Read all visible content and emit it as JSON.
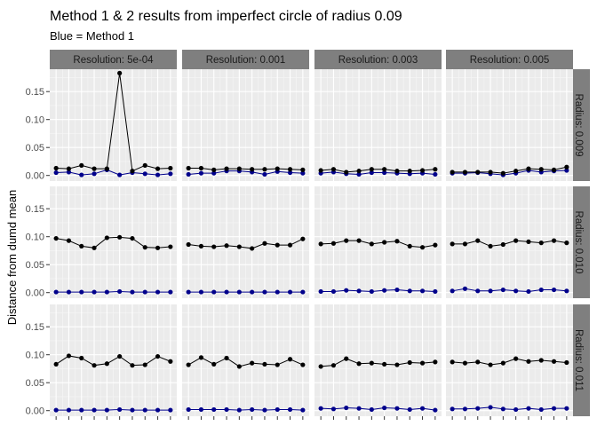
{
  "chart_data": {
    "type": "line",
    "title": "Method 1 & 2 results from imperfect circle of radius 0.09",
    "subtitle": "Blue = Method 1",
    "xlabel": "",
    "ylabel": "Distance from dumd mean",
    "ylim": [
      -0.01,
      0.19
    ],
    "yticks": [
      "0.00",
      "0.05",
      "0.10",
      "0.15"
    ],
    "x": [
      1,
      2,
      3,
      4,
      5,
      6,
      7,
      8,
      9,
      10
    ],
    "grid": true,
    "columns": [
      "Resolution: 5e-04",
      "Resolution: 0.001",
      "Resolution: 0.003",
      "Resolution: 0.005"
    ],
    "rows": [
      "Radius: 0.009",
      "Radius: 0.010",
      "Radius: 0.011"
    ],
    "colors": {
      "method1": "#00008b",
      "method2": "#000000",
      "panel": "#ebebeb",
      "strip": "#7f7f7f"
    },
    "panels": [
      [
        {
          "method2": [
            0.013,
            0.012,
            0.018,
            0.012,
            0.012,
            0.183,
            0.008,
            0.018,
            0.012,
            0.013
          ],
          "method1": [
            0.005,
            0.006,
            0.001,
            0.003,
            0.01,
            0.001,
            0.005,
            0.003,
            0.001,
            0.003
          ]
        },
        {
          "method2": [
            0.013,
            0.013,
            0.01,
            0.012,
            0.012,
            0.011,
            0.011,
            0.012,
            0.011,
            0.01
          ],
          "method1": [
            0.002,
            0.004,
            0.004,
            0.008,
            0.008,
            0.006,
            0.002,
            0.007,
            0.005,
            0.004
          ]
        },
        {
          "method2": [
            0.009,
            0.011,
            0.006,
            0.008,
            0.011,
            0.011,
            0.008,
            0.008,
            0.009,
            0.011
          ],
          "method1": [
            0.004,
            0.006,
            0.003,
            0.002,
            0.005,
            0.005,
            0.004,
            0.003,
            0.004,
            0.002
          ]
        },
        {
          "method2": [
            0.006,
            0.006,
            0.006,
            0.006,
            0.004,
            0.008,
            0.012,
            0.011,
            0.01,
            0.015
          ],
          "method1": [
            0.004,
            0.004,
            0.005,
            0.003,
            0.001,
            0.004,
            0.009,
            0.006,
            0.008,
            0.009
          ]
        }
      ],
      [
        {
          "method2": [
            0.097,
            0.093,
            0.083,
            0.08,
            0.098,
            0.099,
            0.097,
            0.081,
            0.08,
            0.082
          ],
          "method1": [
            0.001,
            0.001,
            0.001,
            0.001,
            0.001,
            0.002,
            0.001,
            0.001,
            0.001,
            0.001
          ]
        },
        {
          "method2": [
            0.086,
            0.083,
            0.082,
            0.084,
            0.082,
            0.079,
            0.088,
            0.085,
            0.085,
            0.096
          ],
          "method1": [
            0.001,
            0.001,
            0.001,
            0.001,
            0.001,
            0.001,
            0.001,
            0.001,
            0.001,
            0.001
          ]
        },
        {
          "method2": [
            0.087,
            0.088,
            0.093,
            0.093,
            0.087,
            0.09,
            0.092,
            0.083,
            0.081,
            0.085
          ],
          "method1": [
            0.002,
            0.002,
            0.004,
            0.003,
            0.002,
            0.004,
            0.005,
            0.003,
            0.003,
            0.002
          ]
        },
        {
          "method2": [
            0.087,
            0.087,
            0.093,
            0.083,
            0.086,
            0.093,
            0.091,
            0.089,
            0.093,
            0.089
          ],
          "method1": [
            0.003,
            0.007,
            0.003,
            0.003,
            0.005,
            0.003,
            0.002,
            0.005,
            0.005,
            0.003
          ]
        }
      ],
      [
        {
          "method2": [
            0.083,
            0.098,
            0.094,
            0.081,
            0.084,
            0.097,
            0.081,
            0.082,
            0.097,
            0.088
          ],
          "method1": [
            0.001,
            0.001,
            0.001,
            0.001,
            0.001,
            0.002,
            0.001,
            0.001,
            0.001,
            0.001
          ]
        },
        {
          "method2": [
            0.082,
            0.095,
            0.083,
            0.094,
            0.079,
            0.085,
            0.083,
            0.082,
            0.092,
            0.082
          ],
          "method1": [
            0.002,
            0.002,
            0.002,
            0.002,
            0.001,
            0.002,
            0.001,
            0.002,
            0.002,
            0.001
          ]
        },
        {
          "method2": [
            0.079,
            0.081,
            0.093,
            0.084,
            0.085,
            0.083,
            0.082,
            0.086,
            0.085,
            0.087
          ],
          "method1": [
            0.004,
            0.003,
            0.005,
            0.004,
            0.002,
            0.005,
            0.004,
            0.002,
            0.004,
            0.001
          ]
        },
        {
          "method2": [
            0.087,
            0.085,
            0.087,
            0.082,
            0.085,
            0.093,
            0.088,
            0.09,
            0.088,
            0.086
          ],
          "method1": [
            0.003,
            0.003,
            0.004,
            0.006,
            0.003,
            0.002,
            0.004,
            0.002,
            0.004,
            0.004
          ]
        }
      ]
    ]
  }
}
